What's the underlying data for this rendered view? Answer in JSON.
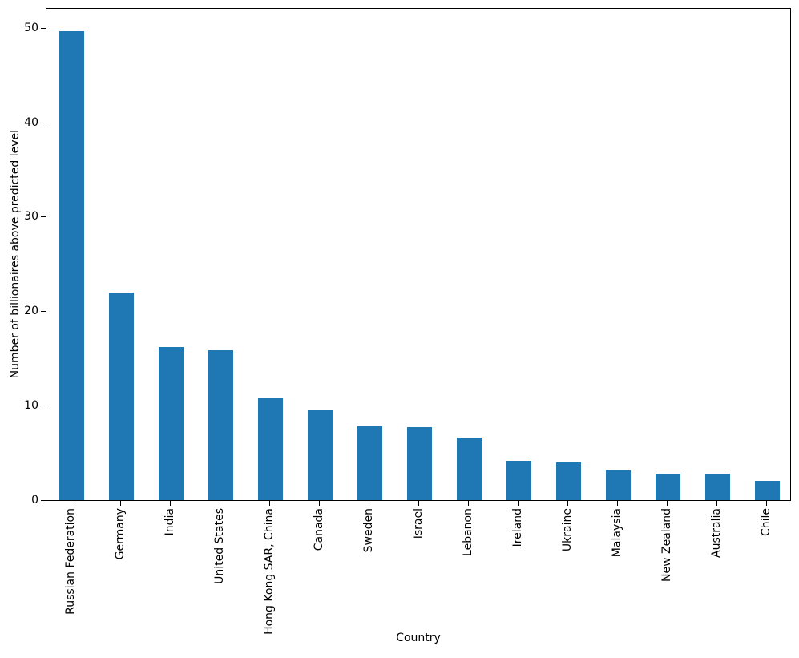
{
  "chart_data": {
    "type": "bar",
    "title": "",
    "xlabel": "Country",
    "ylabel": "Number of billionaires above predicted level",
    "categories": [
      "Russian Federation",
      "Germany",
      "India",
      "United States",
      "Hong Kong SAR, China",
      "Canada",
      "Sweden",
      "Israel",
      "Lebanon",
      "Ireland",
      "Ukraine",
      "Malaysia",
      "New Zealand",
      "Australia",
      "Chile"
    ],
    "values": [
      49.6,
      22.0,
      16.2,
      15.9,
      10.9,
      9.5,
      7.8,
      7.7,
      6.6,
      4.2,
      4.0,
      3.1,
      2.8,
      2.8,
      2.0
    ],
    "yticks": [
      0,
      10,
      20,
      30,
      40,
      50
    ],
    "ylim": [
      0,
      52.1
    ],
    "bar_color": "#1f77b4",
    "axis_color": "#000000",
    "grid": false,
    "legend": "none",
    "x_tick_rotation_deg": 90
  }
}
